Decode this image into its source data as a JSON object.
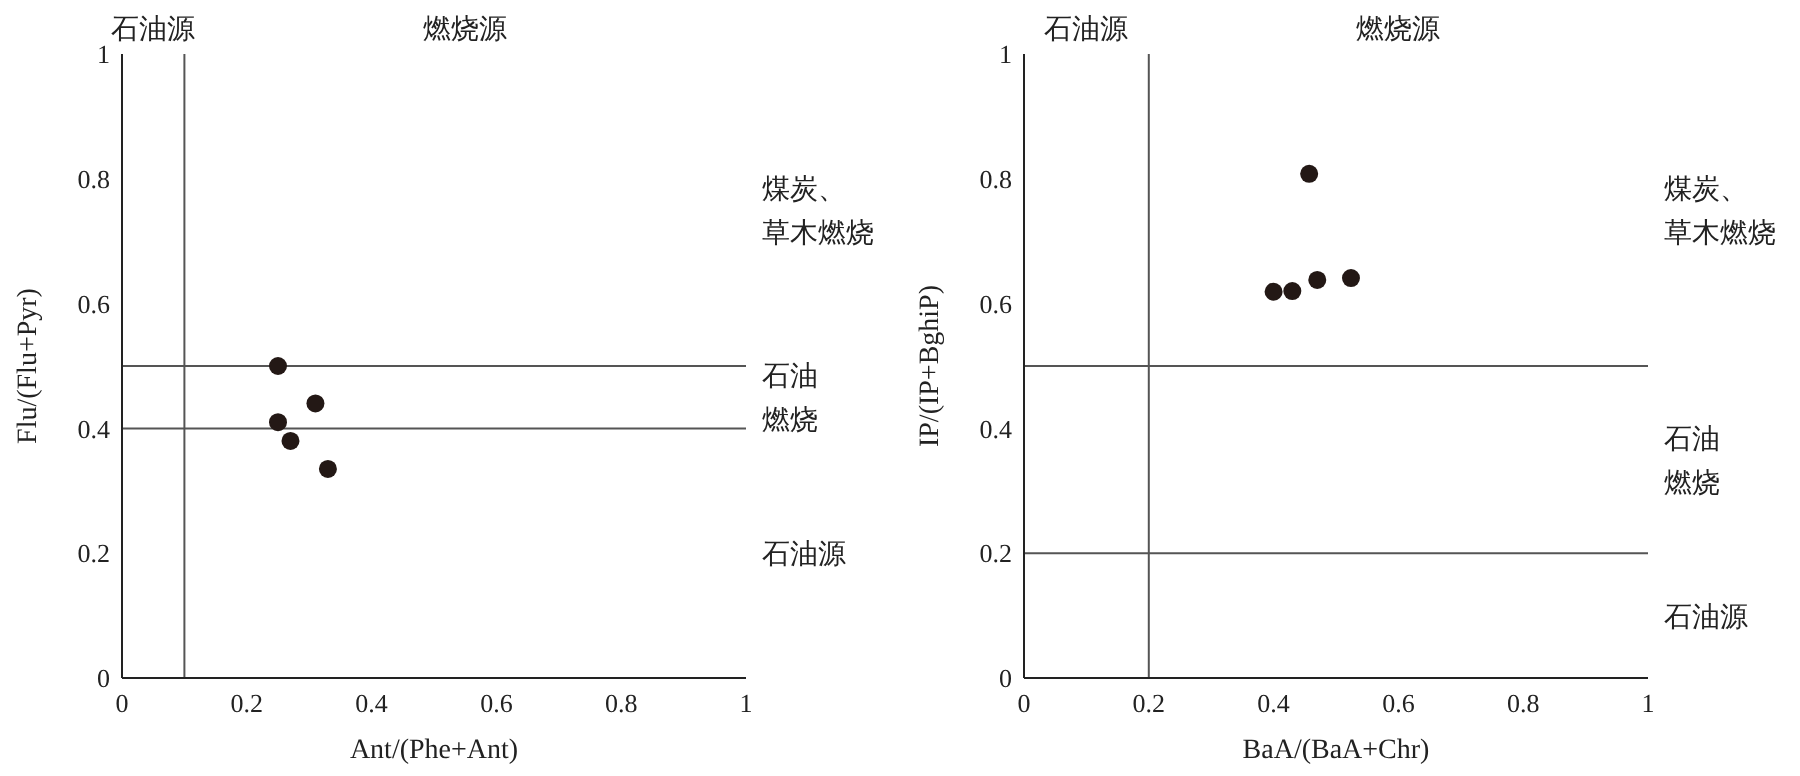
{
  "chart_data": [
    {
      "type": "scatter",
      "xlabel": "Ant/(Phe+Ant)",
      "ylabel": "Flu/(Flu+Pyr)",
      "xlim": [
        0,
        1
      ],
      "ylim": [
        0,
        1
      ],
      "xticks": [
        0,
        0.2,
        0.4,
        0.6,
        0.8,
        1
      ],
      "yticks": [
        0,
        0.2,
        0.4,
        0.6,
        0.8,
        1
      ],
      "grid": false,
      "legend": false,
      "marker": "circle",
      "series": [
        {
          "color": "#231815",
          "x": [
            0.25,
            0.25,
            0.31,
            0.27,
            0.33
          ],
          "values": [
            0.5,
            0.41,
            0.44,
            0.38,
            0.335
          ]
        }
      ],
      "ref_lines": [
        {
          "axis": "x",
          "value": 0.1,
          "color": "#555555"
        },
        {
          "axis": "y",
          "value": 0.4,
          "color": "#555555"
        },
        {
          "axis": "y",
          "value": 0.5,
          "color": "#555555"
        }
      ],
      "annotations": [
        "石油源",
        "燃烧源",
        "石油源",
        "石油燃烧",
        "煤炭、草木燃烧"
      ]
    },
    {
      "type": "scatter",
      "xlabel": "BaA/(BaA+Chr)",
      "ylabel": "IP/(IP+BghiP)",
      "xlim": [
        0,
        1
      ],
      "ylim": [
        0,
        1
      ],
      "xticks": [
        0,
        0.2,
        0.4,
        0.6,
        0.8,
        1
      ],
      "yticks": [
        0,
        0.2,
        0.4,
        0.6,
        0.8,
        1
      ],
      "grid": false,
      "legend": false,
      "marker": "circle",
      "series": [
        {
          "color": "#231815",
          "x": [
            0.457,
            0.4,
            0.43,
            0.47,
            0.524
          ],
          "values": [
            0.808,
            0.619,
            0.62,
            0.638,
            0.641
          ]
        }
      ],
      "ref_lines": [
        {
          "axis": "x",
          "value": 0.2,
          "color": "#555555"
        },
        {
          "axis": "y",
          "value": 0.2,
          "color": "#555555"
        },
        {
          "axis": "y",
          "value": 0.5,
          "color": "#555555"
        }
      ],
      "annotations": [
        "石油源",
        "燃烧源",
        "石油源",
        "石油燃烧",
        "煤炭、草木燃烧"
      ]
    }
  ]
}
